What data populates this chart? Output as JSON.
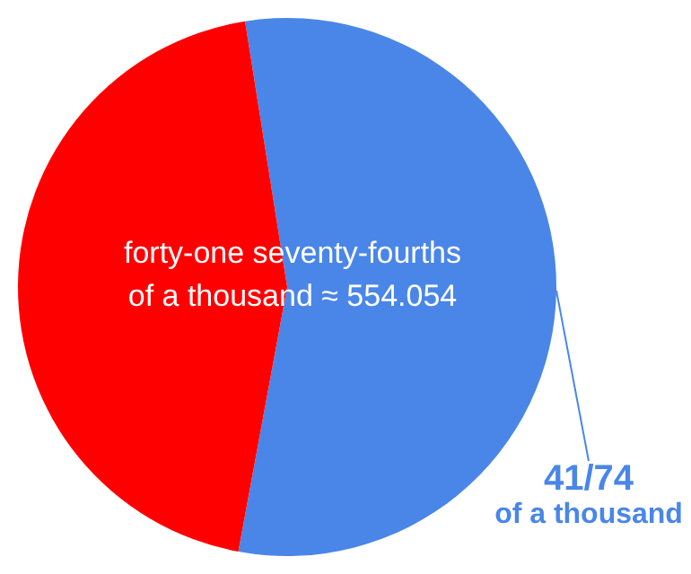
{
  "chart_data": {
    "type": "pie",
    "categories": [
      "41/74\nof a thousand",
      null
    ],
    "values": [
      55.4054,
      44.5946
    ],
    "colors": [
      "#4a86e8",
      "#ff0000"
    ],
    "annotations": [
      "forty-one seventy-fourths\nof a thousand ≈ 554.054"
    ],
    "legend": false
  }
}
